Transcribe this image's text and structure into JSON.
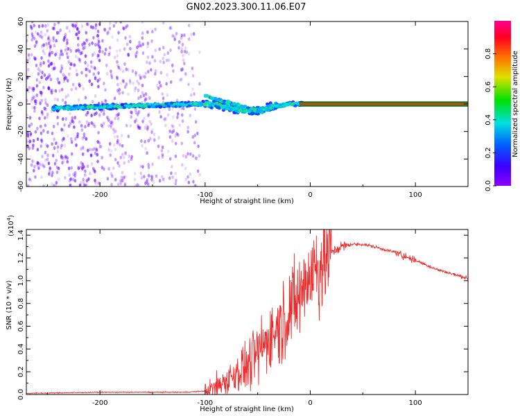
{
  "title": "GN02.2023.300.11.06.E07",
  "colors": {
    "spectrum_scatter": "#6a00ff",
    "snr_line": "#ee2a2a",
    "carrier_line": "#ff1a1a",
    "colorbar_stops": [
      "#8b00ff",
      "#3a00ff",
      "#0060ff",
      "#00e0e0",
      "#00e000",
      "#e0e000",
      "#ff7000",
      "#ff0020",
      "#ff0090"
    ]
  },
  "chart_data": [
    {
      "type": "heatmap",
      "xlabel": "Height of straight line (km)",
      "ylabel": "Frequency (Hz)",
      "xlim": [
        -270,
        150
      ],
      "ylim": [
        -60,
        60
      ],
      "xticks": [
        -200,
        -100,
        0,
        100
      ],
      "yticks": [
        -60,
        -40,
        -20,
        0,
        20,
        40,
        60
      ],
      "colorbar": {
        "label": "Normalized spectral amplitude",
        "range": [
          0,
          1
        ],
        "ticks": [
          "0.0",
          "0.2",
          "0.4",
          "0.6",
          "0.8"
        ]
      },
      "features": {
        "noise_region_x": [
          -270,
          -105
        ],
        "main_ridge": {
          "x": [
            -240,
            -200,
            -150,
            -110,
            -90,
            -70,
            -50,
            -35,
            -20,
            0,
            150
          ],
          "y": [
            -3,
            -2,
            -1,
            0,
            0,
            -4,
            -5,
            -2,
            0,
            0,
            0
          ]
        },
        "carrier_line": {
          "x_start": 0,
          "x_end": 150,
          "frequency": 0
        }
      }
    },
    {
      "type": "line",
      "xlabel": "Height of straight line (km)",
      "ylabel": "SNR (10 * v/v)",
      "y_scale_label": "(x10",
      "y_scale_exponent": "4",
      "xlim": [
        -270,
        150
      ],
      "ylim": [
        0,
        1.45
      ],
      "xticks": [
        -200,
        -100,
        0,
        100
      ],
      "yticks": [
        "0.0",
        "0.2",
        "0.4",
        "0.6",
        "0.8",
        "1.0",
        "1.2",
        "1.4"
      ],
      "series": [
        {
          "x": [
            -270,
            -200,
            -120,
            -100,
            -90,
            -80,
            -70,
            -60,
            -50,
            -40,
            -30,
            -20,
            -10,
            -5,
            0,
            10,
            20,
            30,
            40,
            50,
            60,
            80,
            100,
            120,
            150
          ],
          "y": [
            0.01,
            0.02,
            0.02,
            0.03,
            0.06,
            0.12,
            0.2,
            0.25,
            0.35,
            0.5,
            0.6,
            0.75,
            0.85,
            1.0,
            1.05,
            1.15,
            1.25,
            1.3,
            1.32,
            1.32,
            1.3,
            1.25,
            1.18,
            1.1,
            1.02
          ]
        }
      ]
    }
  ]
}
